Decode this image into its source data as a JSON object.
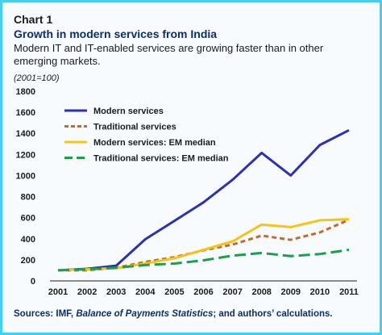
{
  "header": {
    "label": "Chart 1",
    "title": "Growth in modern services from India",
    "subtitle": "Modern IT and IT-enabled services are growing faster than in other emerging markets.",
    "units": "(2001=100)"
  },
  "footer": {
    "source_prefix": "Sources: IMF, ",
    "source_italic": "Balance of Payments Statistics",
    "source_suffix": "; and authors’ calculations."
  },
  "chart_data": {
    "type": "line",
    "title": "Growth in modern services from India",
    "xlabel": "",
    "ylabel": "(2001=100)",
    "x": [
      "2001",
      "2002",
      "2003",
      "2004",
      "2005",
      "2006",
      "2007",
      "2008",
      "2009",
      "2010",
      "2011"
    ],
    "yticks": [
      "0",
      "200",
      "400",
      "600",
      "800",
      "1000",
      "1200",
      "1400",
      "1600",
      "1800"
    ],
    "ylim": [
      0,
      1800
    ],
    "grid": false,
    "legend": "top-left",
    "series": [
      {
        "name": "Modern services",
        "color": "#2e2fb5",
        "dash": "solid",
        "values": [
          100,
          115,
          145,
          395,
          570,
          745,
          960,
          1215,
          1000,
          1290,
          1430
        ]
      },
      {
        "name": "Traditional services",
        "color": "#c9682b",
        "dash": "short",
        "values": [
          100,
          100,
          125,
          180,
          225,
          290,
          345,
          430,
          390,
          460,
          580
        ]
      },
      {
        "name": "Modern services: EM median",
        "color": "#f5c414",
        "dash": "solid",
        "values": [
          100,
          110,
          120,
          165,
          215,
          295,
          375,
          535,
          510,
          575,
          585
        ]
      },
      {
        "name": "Traditional services: EM median",
        "color": "#17a24a",
        "dash": "long",
        "values": [
          100,
          110,
          125,
          150,
          165,
          195,
          240,
          265,
          235,
          255,
          295
        ]
      }
    ]
  }
}
